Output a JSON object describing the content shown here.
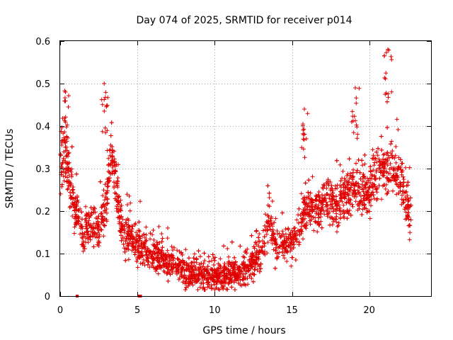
{
  "chart_data": {
    "type": "scatter",
    "title": "Day 074 of 2025, SRMTID for receiver p014",
    "xlabel": "GPS time / hours",
    "ylabel": "SRMTID / TECUs",
    "xlim": [
      0,
      24
    ],
    "ylim": [
      0,
      0.6
    ],
    "xticks": [
      0,
      5,
      10,
      15,
      20
    ],
    "yticks": [
      0,
      0.1,
      0.2,
      0.3,
      0.4,
      0.5,
      0.6
    ],
    "xtick_labels": [
      "0",
      "5",
      "10",
      "15",
      "20"
    ],
    "ytick_labels": [
      "0",
      "0.1",
      "0.2",
      "0.3",
      "0.4",
      "0.5",
      "0.6"
    ],
    "grid": true,
    "marker": "+",
    "color": "#e00000",
    "data_range_hours": [
      0,
      22.7
    ],
    "trend": {
      "hours": [
        0,
        0.3,
        0.6,
        1.0,
        1.5,
        2.0,
        2.5,
        3.0,
        3.3,
        3.6,
        4.0,
        5.0,
        6.0,
        7.0,
        8.0,
        9.0,
        10.0,
        11.0,
        12.0,
        13.0,
        13.5,
        14.0,
        15.0,
        16.0,
        17.0,
        18.0,
        19.0,
        20.0,
        21.0,
        22.0,
        22.7
      ],
      "values": [
        0.3,
        0.35,
        0.27,
        0.2,
        0.15,
        0.17,
        0.15,
        0.22,
        0.35,
        0.28,
        0.15,
        0.12,
        0.1,
        0.08,
        0.06,
        0.05,
        0.045,
        0.05,
        0.06,
        0.1,
        0.18,
        0.12,
        0.13,
        0.2,
        0.22,
        0.22,
        0.25,
        0.25,
        0.3,
        0.28,
        0.18
      ]
    },
    "spread": 0.045,
    "peaks": [
      {
        "hour": 0.35,
        "value": 0.48
      },
      {
        "hour": 2.85,
        "value": 0.5
      },
      {
        "hour": 15.8,
        "value": 0.44
      },
      {
        "hour": 19.1,
        "value": 0.49
      },
      {
        "hour": 21.2,
        "value": 0.58
      }
    ],
    "zero_markers_hours": [
      1.1,
      5.1,
      5.2
    ],
    "points_per_hour": 140
  }
}
